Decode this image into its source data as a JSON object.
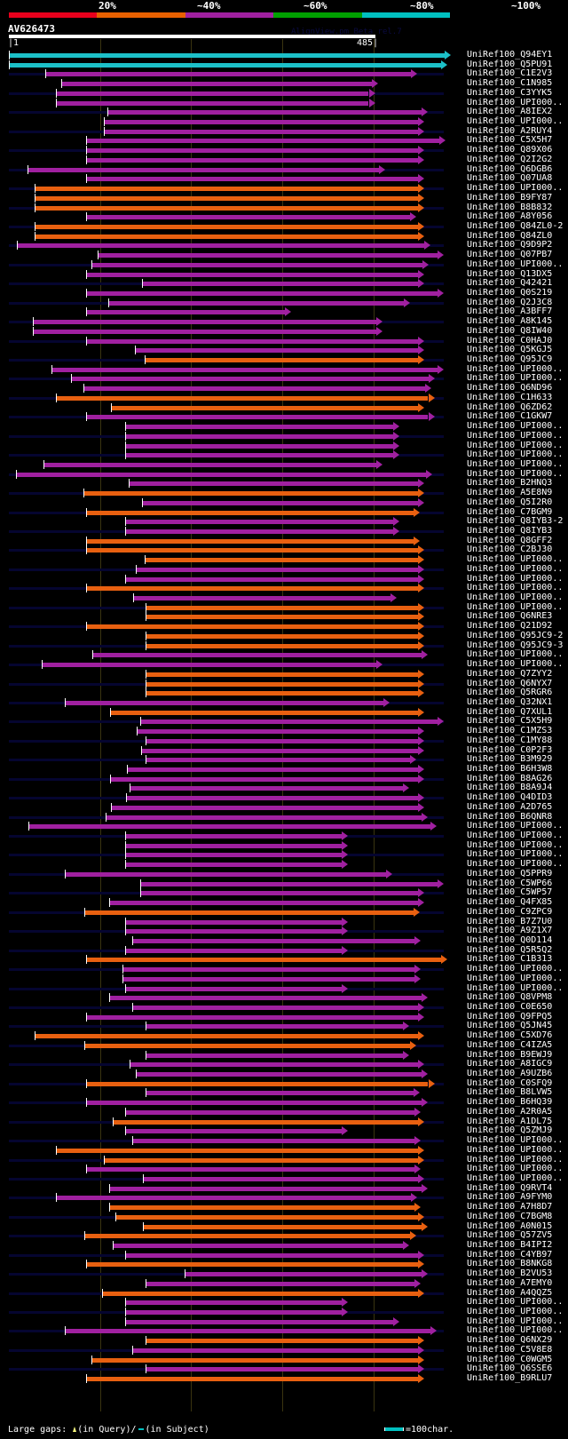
{
  "header": {
    "percent_legend": [
      "20%",
      "~40%",
      "~60%",
      "~80%",
      "~100%"
    ],
    "percent_colors": [
      "#e8001c",
      "#e86000",
      "#a020a0",
      "#00a000",
      "#00c0c0"
    ],
    "query_name": "AV626473",
    "watermark": "AlignView.pm Beta rel.7",
    "query_start": "|1",
    "query_end": "485|",
    "query_length": 485
  },
  "colors": {
    "cyan": "#1cc0c8",
    "magenta": "#a020a0",
    "orange": "#e86010",
    "gap_marker": "#ffff80"
  },
  "hits": [
    {
      "name": "UniRef100_Q94EY1",
      "color": "cyan",
      "start": 1,
      "end": 485
    },
    {
      "name": "UniRef100_Q5PU91",
      "color": "cyan",
      "start": 1,
      "end": 481
    },
    {
      "name": "UniRef100_C1E2V3",
      "color": "magenta",
      "start": 41,
      "end": 448
    },
    {
      "name": "UniRef100_C1N985",
      "color": "magenta",
      "start": 58,
      "end": 405
    },
    {
      "name": "UniRef100_C3YYK5",
      "color": "magenta",
      "start": 53,
      "end": 402
    },
    {
      "name": "UniRef100_UPI000..",
      "color": "magenta",
      "start": 53,
      "end": 402
    },
    {
      "name": "UniRef100_A8IEX2",
      "color": "magenta",
      "start": 109,
      "end": 460
    },
    {
      "name": "UniRef100_UPI000..",
      "color": "magenta",
      "start": 105,
      "end": 456
    },
    {
      "name": "UniRef100_A2RUY4",
      "color": "magenta",
      "start": 105,
      "end": 456
    },
    {
      "name": "UniRef100_C5X5H7",
      "color": "magenta",
      "start": 86,
      "end": 479
    },
    {
      "name": "UniRef100_Q89X06",
      "color": "magenta",
      "start": 86,
      "end": 456
    },
    {
      "name": "UniRef100_Q2I2G2",
      "color": "magenta",
      "start": 86,
      "end": 456
    },
    {
      "name": "UniRef100_Q6DGB6",
      "color": "magenta",
      "start": 21,
      "end": 413
    },
    {
      "name": "UniRef100_Q07UA8",
      "color": "magenta",
      "start": 86,
      "end": 456
    },
    {
      "name": "UniRef100_UPI000..",
      "color": "orange",
      "start": 29,
      "end": 456
    },
    {
      "name": "UniRef100_B9FY87",
      "color": "orange",
      "start": 29,
      "end": 456
    },
    {
      "name": "UniRef100_B8B832",
      "color": "orange",
      "start": 29,
      "end": 456
    },
    {
      "name": "UniRef100_A8Y056",
      "color": "magenta",
      "start": 86,
      "end": 447
    },
    {
      "name": "UniRef100_Q84ZL0-2",
      "color": "orange",
      "start": 29,
      "end": 456
    },
    {
      "name": "UniRef100_Q84ZL0",
      "color": "orange",
      "start": 29,
      "end": 456
    },
    {
      "name": "UniRef100_Q9D9P2",
      "color": "magenta",
      "start": 10,
      "end": 463
    },
    {
      "name": "UniRef100_Q07PB7",
      "color": "magenta",
      "start": 98,
      "end": 477
    },
    {
      "name": "UniRef100_UPI000..",
      "color": "magenta",
      "start": 92,
      "end": 461
    },
    {
      "name": "UniRef100_Q13DX5",
      "color": "magenta",
      "start": 86,
      "end": 456
    },
    {
      "name": "UniRef100_Q42421",
      "color": "magenta",
      "start": 147,
      "end": 456
    },
    {
      "name": "UniRef100_Q0S219",
      "color": "magenta",
      "start": 86,
      "end": 477
    },
    {
      "name": "UniRef100_Q2J3C8",
      "color": "magenta",
      "start": 110,
      "end": 440
    },
    {
      "name": "UniRef100_A3BFF7",
      "color": "magenta",
      "start": 86,
      "end": 310
    },
    {
      "name": "UniRef100_A8K145",
      "color": "magenta",
      "start": 27,
      "end": 410
    },
    {
      "name": "UniRef100_Q8IW40",
      "color": "magenta",
      "start": 27,
      "end": 410
    },
    {
      "name": "UniRef100_C0HAJ0",
      "color": "magenta",
      "start": 86,
      "end": 456
    },
    {
      "name": "UniRef100_Q5KGJ5",
      "color": "magenta",
      "start": 139,
      "end": 456
    },
    {
      "name": "UniRef100_Q95JC9",
      "color": "orange",
      "start": 150,
      "end": 456
    },
    {
      "name": "UniRef100_UPI000..",
      "color": "magenta",
      "start": 48,
      "end": 477
    },
    {
      "name": "UniRef100_UPI000..",
      "color": "magenta",
      "start": 69,
      "end": 467
    },
    {
      "name": "UniRef100_Q6ND96",
      "color": "magenta",
      "start": 83,
      "end": 464
    },
    {
      "name": "UniRef100_C1H633",
      "color": "orange",
      "start": 53,
      "end": 467
    },
    {
      "name": "UniRef100_Q6ZD62",
      "color": "orange",
      "start": 113,
      "end": 456
    },
    {
      "name": "UniRef100_C1GKW7",
      "color": "magenta",
      "start": 86,
      "end": 467
    },
    {
      "name": "UniRef100_UPI000..",
      "color": "magenta",
      "start": 129,
      "end": 429
    },
    {
      "name": "UniRef100_UPI000..",
      "color": "magenta",
      "start": 129,
      "end": 429
    },
    {
      "name": "UniRef100_UPI000..",
      "color": "magenta",
      "start": 129,
      "end": 429
    },
    {
      "name": "UniRef100_UPI000..",
      "color": "magenta",
      "start": 129,
      "end": 429
    },
    {
      "name": "UniRef100_UPI000..",
      "color": "magenta",
      "start": 39,
      "end": 410
    },
    {
      "name": "UniRef100_UPI000..",
      "color": "magenta",
      "start": 9,
      "end": 465
    },
    {
      "name": "UniRef100_B2HNQ3",
      "color": "magenta",
      "start": 132,
      "end": 456
    },
    {
      "name": "UniRef100_A5E8N9",
      "color": "orange",
      "start": 83,
      "end": 456
    },
    {
      "name": "UniRef100_Q5I2R0",
      "color": "magenta",
      "start": 147,
      "end": 456
    },
    {
      "name": "UniRef100_C7BGM9",
      "color": "orange",
      "start": 86,
      "end": 451
    },
    {
      "name": "UniRef100_Q8IYB3-2",
      "color": "magenta",
      "start": 129,
      "end": 429
    },
    {
      "name": "UniRef100_Q8IYB3",
      "color": "magenta",
      "start": 129,
      "end": 429
    },
    {
      "name": "UniRef100_Q8GFF2",
      "color": "orange",
      "start": 86,
      "end": 451
    },
    {
      "name": "UniRef100_C2BJ30",
      "color": "orange",
      "start": 86,
      "end": 456
    },
    {
      "name": "UniRef100_UPI000..",
      "color": "orange",
      "start": 150,
      "end": 456
    },
    {
      "name": "UniRef100_UPI000..",
      "color": "magenta",
      "start": 140,
      "end": 456
    },
    {
      "name": "UniRef100_UPI000..",
      "color": "magenta",
      "start": 129,
      "end": 456
    },
    {
      "name": "UniRef100_UPI000..",
      "color": "orange",
      "start": 86,
      "end": 456
    },
    {
      "name": "UniRef100_UPI000..",
      "color": "magenta",
      "start": 137,
      "end": 426
    },
    {
      "name": "UniRef100_UPI000..",
      "color": "orange",
      "start": 151,
      "end": 456
    },
    {
      "name": "UniRef100_Q6NRE3",
      "color": "orange",
      "start": 151,
      "end": 456
    },
    {
      "name": "UniRef100_Q21D92",
      "color": "orange",
      "start": 86,
      "end": 456
    },
    {
      "name": "UniRef100_Q95JC9-2",
      "color": "orange",
      "start": 151,
      "end": 456
    },
    {
      "name": "UniRef100_Q95JC9-3",
      "color": "orange",
      "start": 151,
      "end": 456
    },
    {
      "name": "UniRef100_UPI000..",
      "color": "magenta",
      "start": 93,
      "end": 460
    },
    {
      "name": "UniRef100_UPI000..",
      "color": "magenta",
      "start": 37,
      "end": 410
    },
    {
      "name": "UniRef100_Q7ZYY2",
      "color": "orange",
      "start": 151,
      "end": 456
    },
    {
      "name": "UniRef100_Q6NYX7",
      "color": "orange",
      "start": 151,
      "end": 456
    },
    {
      "name": "UniRef100_Q5RGR6",
      "color": "orange",
      "start": 151,
      "end": 456
    },
    {
      "name": "UniRef100_Q32NX1",
      "color": "magenta",
      "start": 62,
      "end": 418
    },
    {
      "name": "UniRef100_Q7XUL1",
      "color": "orange",
      "start": 112,
      "end": 456
    },
    {
      "name": "UniRef100_C5X5H9",
      "color": "magenta",
      "start": 145,
      "end": 477
    },
    {
      "name": "UniRef100_C1MZS3",
      "color": "magenta",
      "start": 141,
      "end": 456
    },
    {
      "name": "UniRef100_C1MY88",
      "color": "magenta",
      "start": 151,
      "end": 456
    },
    {
      "name": "UniRef100_C0P2F3",
      "color": "magenta",
      "start": 146,
      "end": 456
    },
    {
      "name": "UniRef100_B3M929",
      "color": "magenta",
      "start": 151,
      "end": 447
    },
    {
      "name": "UniRef100_B6H3W8",
      "color": "magenta",
      "start": 131,
      "end": 456
    },
    {
      "name": "UniRef100_B8AG26",
      "color": "magenta",
      "start": 112,
      "end": 456
    },
    {
      "name": "UniRef100_B8A9J4",
      "color": "magenta",
      "start": 133,
      "end": 439
    },
    {
      "name": "UniRef100_Q4DID3",
      "color": "magenta",
      "start": 130,
      "end": 456
    },
    {
      "name": "UniRef100_A2D765",
      "color": "magenta",
      "start": 113,
      "end": 456
    },
    {
      "name": "UniRef100_B6QNR8",
      "color": "magenta",
      "start": 107,
      "end": 460
    },
    {
      "name": "UniRef100_UPI000..",
      "color": "magenta",
      "start": 22,
      "end": 469
    },
    {
      "name": "UniRef100_UPI000..",
      "color": "magenta",
      "start": 129,
      "end": 372
    },
    {
      "name": "UniRef100_UPI000..",
      "color": "magenta",
      "start": 129,
      "end": 372
    },
    {
      "name": "UniRef100_UPI000..",
      "color": "magenta",
      "start": 129,
      "end": 372
    },
    {
      "name": "UniRef100_UPI000..",
      "color": "magenta",
      "start": 129,
      "end": 372
    },
    {
      "name": "UniRef100_Q5PPR9",
      "color": "magenta",
      "start": 62,
      "end": 421
    },
    {
      "name": "UniRef100_C5WP66",
      "color": "magenta",
      "start": 145,
      "end": 477
    },
    {
      "name": "UniRef100_C5WP57",
      "color": "magenta",
      "start": 145,
      "end": 456
    },
    {
      "name": "UniRef100_Q4FX85",
      "color": "magenta",
      "start": 111,
      "end": 456
    },
    {
      "name": "UniRef100_C9ZPC9",
      "color": "orange",
      "start": 84,
      "end": 451
    },
    {
      "name": "UniRef100_B7Z7U0",
      "color": "magenta",
      "start": 129,
      "end": 372
    },
    {
      "name": "UniRef100_A9Z1X7",
      "color": "magenta",
      "start": 129,
      "end": 372
    },
    {
      "name": "UniRef100_Q0D114",
      "color": "magenta",
      "start": 136,
      "end": 452
    },
    {
      "name": "UniRef100_Q5R5Q2",
      "color": "magenta",
      "start": 129,
      "end": 372
    },
    {
      "name": "UniRef100_C1B313",
      "color": "orange",
      "start": 86,
      "end": 481
    },
    {
      "name": "UniRef100_UPI000..",
      "color": "magenta",
      "start": 126,
      "end": 452
    },
    {
      "name": "UniRef100_UPI000..",
      "color": "magenta",
      "start": 126,
      "end": 452
    },
    {
      "name": "UniRef100_UPI000..",
      "color": "magenta",
      "start": 129,
      "end": 372
    },
    {
      "name": "UniRef100_Q8VPM8",
      "color": "magenta",
      "start": 111,
      "end": 460
    },
    {
      "name": "UniRef100_C0E650",
      "color": "magenta",
      "start": 136,
      "end": 456
    },
    {
      "name": "UniRef100_Q9FPQ5",
      "color": "magenta",
      "start": 86,
      "end": 456
    },
    {
      "name": "UniRef100_Q5JN45",
      "color": "magenta",
      "start": 151,
      "end": 439
    },
    {
      "name": "UniRef100_C5XD76",
      "color": "orange",
      "start": 29,
      "end": 456
    },
    {
      "name": "UniRef100_C4IZA5",
      "color": "orange",
      "start": 84,
      "end": 447
    },
    {
      "name": "UniRef100_B9EWJ9",
      "color": "magenta",
      "start": 151,
      "end": 439
    },
    {
      "name": "UniRef100_A8IGC9",
      "color": "magenta",
      "start": 133,
      "end": 456
    },
    {
      "name": "UniRef100_A9UZB6",
      "color": "magenta",
      "start": 140,
      "end": 460
    },
    {
      "name": "UniRef100_C0SFQ9",
      "color": "orange",
      "start": 86,
      "end": 467
    },
    {
      "name": "UniRef100_B8LVW5",
      "color": "magenta",
      "start": 151,
      "end": 451
    },
    {
      "name": "UniRef100_B6HQ39",
      "color": "magenta",
      "start": 86,
      "end": 460
    },
    {
      "name": "UniRef100_A2R0A5",
      "color": "magenta",
      "start": 129,
      "end": 452
    },
    {
      "name": "UniRef100_A1DL75",
      "color": "orange",
      "start": 115,
      "end": 456
    },
    {
      "name": "UniRef100_Q5ZMJ9",
      "color": "magenta",
      "start": 129,
      "end": 372
    },
    {
      "name": "UniRef100_UPI000..",
      "color": "magenta",
      "start": 136,
      "end": 452
    },
    {
      "name": "UniRef100_UPI000..",
      "color": "orange",
      "start": 53,
      "end": 456
    },
    {
      "name": "UniRef100_UPI000..",
      "color": "orange",
      "start": 105,
      "end": 456
    },
    {
      "name": "UniRef100_UPI000..",
      "color": "magenta",
      "start": 86,
      "end": 452
    },
    {
      "name": "UniRef100_UPI000..",
      "color": "magenta",
      "start": 148,
      "end": 456
    },
    {
      "name": "UniRef100_Q9RVT4",
      "color": "magenta",
      "start": 111,
      "end": 460
    },
    {
      "name": "UniRef100_A9FYM0",
      "color": "magenta",
      "start": 53,
      "end": 448
    },
    {
      "name": "UniRef100_A7H8D7",
      "color": "orange",
      "start": 111,
      "end": 452
    },
    {
      "name": "UniRef100_C7BGM8",
      "color": "orange",
      "start": 118,
      "end": 456
    },
    {
      "name": "UniRef100_A0N015",
      "color": "orange",
      "start": 148,
      "end": 460
    },
    {
      "name": "UniRef100_Q57ZV5",
      "color": "orange",
      "start": 84,
      "end": 447
    },
    {
      "name": "UniRef100_B4IPI2",
      "color": "magenta",
      "start": 115,
      "end": 439
    },
    {
      "name": "UniRef100_C4YB97",
      "color": "magenta",
      "start": 129,
      "end": 456
    },
    {
      "name": "UniRef100_B8NKG8",
      "color": "orange",
      "start": 86,
      "end": 456
    },
    {
      "name": "UniRef100_B2VU53",
      "color": "magenta",
      "start": 194,
      "end": 460
    },
    {
      "name": "UniRef100_A7EMY0",
      "color": "magenta",
      "start": 151,
      "end": 452
    },
    {
      "name": "UniRef100_A4QQZ5",
      "color": "orange",
      "start": 103,
      "end": 456
    },
    {
      "name": "UniRef100_UPI000..",
      "color": "magenta",
      "start": 129,
      "end": 372
    },
    {
      "name": "UniRef100_UPI000..",
      "color": "magenta",
      "start": 129,
      "end": 372
    },
    {
      "name": "UniRef100_UPI000..",
      "color": "magenta",
      "start": 129,
      "end": 429
    },
    {
      "name": "UniRef100_UPI000..",
      "color": "magenta",
      "start": 62,
      "end": 469
    },
    {
      "name": "UniRef100_Q6NX29",
      "color": "orange",
      "start": 151,
      "end": 456
    },
    {
      "name": "UniRef100_C5V8E8",
      "color": "magenta",
      "start": 136,
      "end": 456
    },
    {
      "name": "UniRef100_C0WGM5",
      "color": "orange",
      "start": 92,
      "end": 456
    },
    {
      "name": "UniRef100_Q6SSE6",
      "color": "magenta",
      "start": 151,
      "end": 456
    },
    {
      "name": "UniRef100_B9RLU7",
      "color": "orange",
      "start": 86,
      "end": 456
    }
  ],
  "footer": {
    "gaps_label": "Large gaps:",
    "in_query": "(in Query)/",
    "in_subject": "(in Subject)",
    "scale_label": "=100char."
  }
}
